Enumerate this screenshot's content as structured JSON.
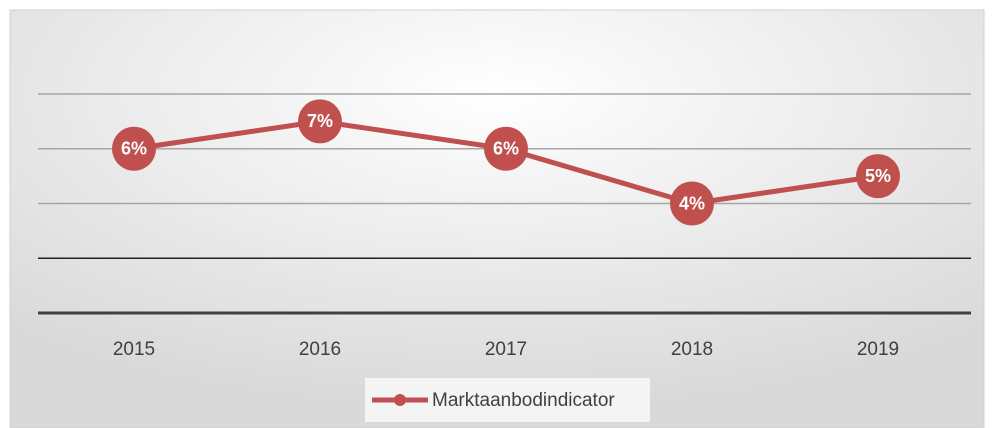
{
  "chart_data": {
    "type": "line",
    "categories": [
      "2015",
      "2016",
      "2017",
      "2018",
      "2019"
    ],
    "series": [
      {
        "name": "Marktaanbodindicator",
        "color": "#c0504d",
        "values": [
          6,
          7,
          6,
          4,
          5
        ],
        "value_labels": [
          "6%",
          "7%",
          "6%",
          "4%",
          "5%"
        ]
      }
    ],
    "ylim": [
      0,
      8
    ],
    "yticks": [
      0,
      2,
      4,
      6,
      8
    ],
    "grid": true,
    "legend": "bottom"
  }
}
